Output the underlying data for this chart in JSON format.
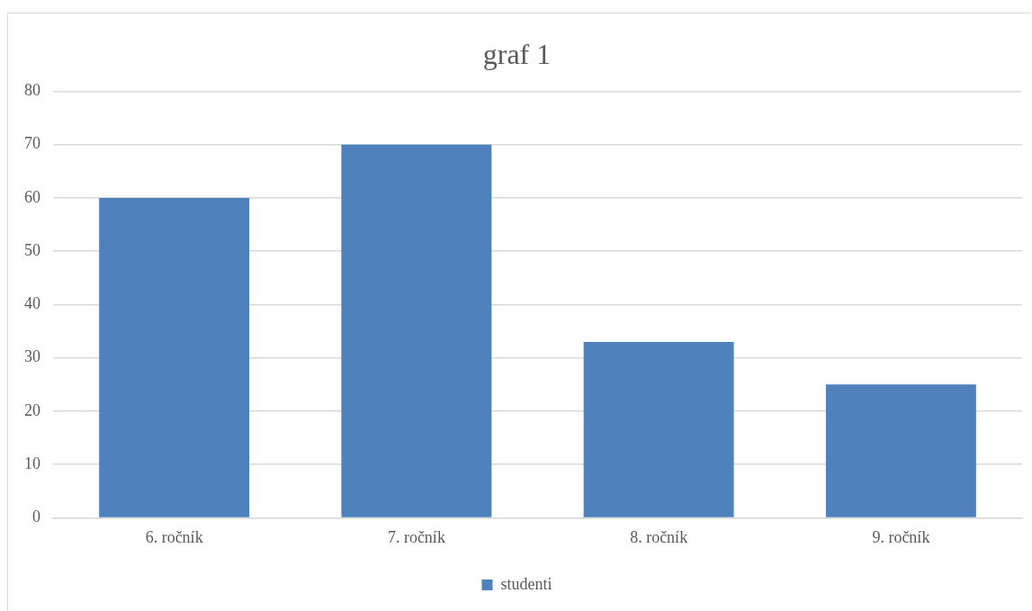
{
  "chart_data": {
    "type": "bar",
    "title": "graf 1",
    "categories": [
      "6. ročník",
      "7. ročník",
      "8. ročník",
      "9. ročník"
    ],
    "series": [
      {
        "name": "studenti",
        "color": "#4f81bd",
        "values": [
          60,
          70,
          33,
          25
        ]
      }
    ],
    "ylim": [
      0,
      80
    ],
    "yticks": [
      0,
      10,
      20,
      30,
      40,
      50,
      60,
      70,
      80
    ],
    "grid": "y",
    "legend": "bottom"
  }
}
